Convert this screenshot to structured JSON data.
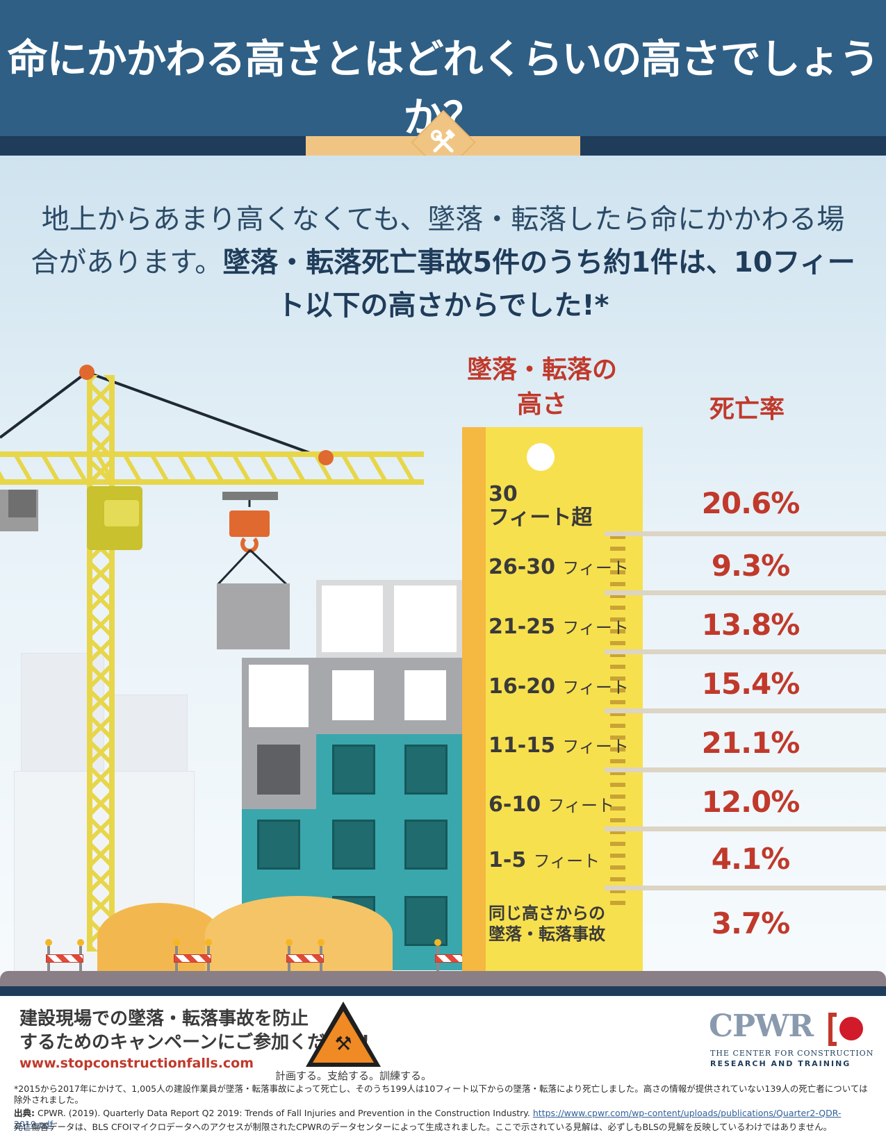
{
  "header": {
    "title": "命にかかわる高さとはどれくらいの高さでしょうか？",
    "badge_icon": "hammer-wrench-icon"
  },
  "intro": {
    "lead": "地上からあまり高くなくても、墜落・転落したら命にかかわる場合があります。",
    "emphasis": "墜落・転落死亡事故5件のうち約1件は、10フィート以下の高さからでした!*"
  },
  "table": {
    "height_header_line1": "墜落・転落の",
    "height_header_line2": "高さ",
    "rate_header": "死亡率",
    "rows": [
      {
        "label": "30",
        "label2": "フィート超",
        "unit": "",
        "value": "20.6%"
      },
      {
        "label": "26-30",
        "label2": "",
        "unit": "フィート",
        "value": "9.3%"
      },
      {
        "label": "21-25",
        "label2": "",
        "unit": "フィート",
        "value": "13.8%"
      },
      {
        "label": "16-20",
        "label2": "",
        "unit": "フィート",
        "value": "15.4%"
      },
      {
        "label": "11-15",
        "label2": "",
        "unit": "フィート",
        "value": "21.1%"
      },
      {
        "label": "6-10",
        "label2": "",
        "unit": "フィート",
        "value": "12.0%"
      },
      {
        "label": "1-5",
        "label2": "",
        "unit": "フィート",
        "value": "4.1%"
      },
      {
        "label": "同じ高さからの",
        "label2": "墜落・転落事故",
        "unit": "",
        "value": "3.7%"
      }
    ]
  },
  "colors": {
    "header_bg": "#2f5f85",
    "accent_red": "#c0392b",
    "ruler_yellow": "#f7e04e",
    "crane_yellow": "#e7d64a",
    "teal": "#3aa7ad"
  },
  "footer": {
    "campaign_line1": "建設現場での墜落・転落事故を防止",
    "campaign_line2": "するためのキャンペーンにご参加ください!",
    "campaign_url": "www.stopconstructionfalls.com",
    "slogan": "計画する。支給する。訓練する。",
    "warning_icon": "worker-warning-sign-icon",
    "org_name": "CPWR",
    "org_sub1": "THE CENTER FOR CONSTRUCTION",
    "org_sub2": "RESEARCH AND TRAINING",
    "footnote1": "*2015から2017年にかけて、1,005人の建設作業員が墜落・転落事故によって死亡し、そのうち199人は10フィート以下からの墜落・転落により死亡しました。高さの情報が提供されていない139人の死亡者については除外されました。",
    "source_label": "出典:",
    "source_text": "CPWR. (2019). Quarterly Data Report Q2 2019: Trends of Fall Injuries and Prevention in the Construction Industry.",
    "source_link": "https://www.cpwr.com/wp-content/uploads/publications/Quarter2-QDR-2019.pdf",
    "footnote2": "死亡傷害データは、BLS CFOIマイクロデータへのアクセスが制限されたCPWRのデータセンターによって生成されました。ここで示されている見解は、必ずしもBLSの見解を反映しているわけではありません。"
  }
}
